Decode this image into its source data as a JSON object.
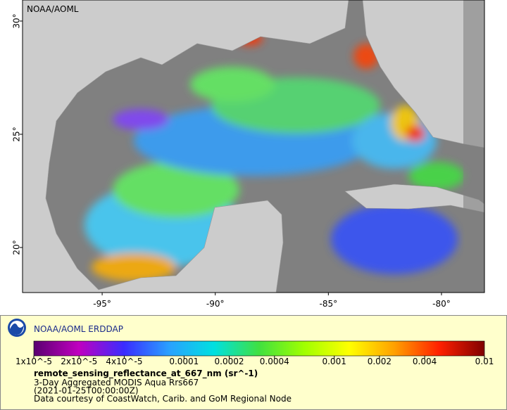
{
  "map": {
    "label": "NOAA/AOML",
    "lonlim": [
      -98.52,
      -78.1
    ],
    "latlim": [
      18.01,
      30.93
    ],
    "lat_ticks": [
      {
        "value": 30,
        "label": "30°"
      },
      {
        "value": 25,
        "label": "25°"
      },
      {
        "value": 20,
        "label": "20°"
      }
    ],
    "lon_ticks": [
      {
        "value": -95,
        "label": "-95°"
      },
      {
        "value": -90,
        "label": "-90°"
      },
      {
        "value": -85,
        "label": "-85°"
      },
      {
        "value": -80,
        "label": "-80°"
      }
    ]
  },
  "legend": {
    "title": "NOAA/AOML ERDDAP",
    "colorbar": {
      "range": [
        1e-05,
        0.01
      ],
      "log_scale": true,
      "colors": [
        "#5a0070",
        "#c000c0",
        "#3a2cff",
        "#2aa0ff",
        "#00e0e0",
        "#40e040",
        "#a0ff00",
        "#ffff00",
        "#ffa000",
        "#ff2000",
        "#800000"
      ],
      "ticks": [
        {
          "value": 1e-05,
          "label": "1x10^-5"
        },
        {
          "value": 2e-05,
          "label": "2x10^-5"
        },
        {
          "value": 4e-05,
          "label": "4x10^-5"
        },
        0.0001,
        0.0002,
        0.0004,
        0.001,
        0.002,
        0.004,
        0.01
      ]
    },
    "variable": "remote_sensing_reflectance_at_667_nm (sr^-1)",
    "lines": [
      "3-Day Aggregated MODIS Aqua Rrs667",
      "(2021-01-25T00:00:00Z)",
      "Data courtesy of CoastWatch, Carib. and GoM Regional Node"
    ]
  }
}
